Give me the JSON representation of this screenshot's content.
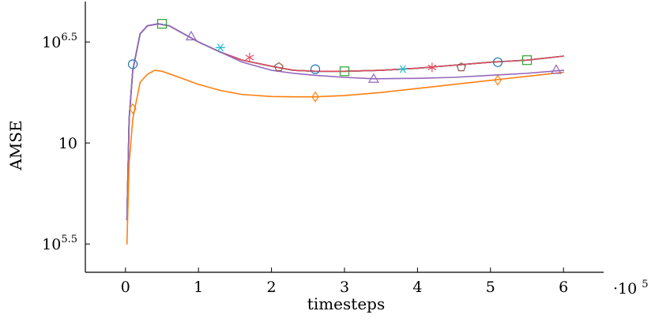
{
  "chart_data": {
    "type": "line",
    "xlabel": "timesteps",
    "ylabel": "AMSE",
    "x_scale_note": "·10^5",
    "x_scale_base": "·10",
    "x_scale_exp": "5",
    "xlim": [
      -0.55,
      6.55
    ],
    "ylim_log10": [
      5.36,
      6.7
    ],
    "y_scale": "log",
    "grid": false,
    "legend": "none",
    "x_ticks": [
      0,
      1,
      2,
      3,
      4,
      5,
      6
    ],
    "x_tick_labels": [
      "0",
      "1",
      "2",
      "3",
      "4",
      "5",
      "6"
    ],
    "y_ticks_log10": [
      5.5,
      6,
      6.5
    ],
    "y_tick_labels": [
      {
        "base": "10",
        "exp": "5.5"
      },
      {
        "base": "10",
        "exp": ""
      },
      {
        "base": "10",
        "exp": "6.5"
      }
    ],
    "series": [
      {
        "color": "#8c564b",
        "marker": "pentagon",
        "x": [
          0.02,
          0.05,
          0.1,
          0.2,
          0.3,
          0.45,
          0.6,
          0.8,
          1.0,
          1.3,
          1.6,
          2.0,
          2.3,
          2.6,
          3.0,
          3.5,
          4.0,
          4.5,
          5.0,
          5.5,
          6.0
        ],
        "log10_y": [
          5.62,
          6.12,
          6.36,
          6.54,
          6.58,
          6.59,
          6.58,
          6.54,
          6.5,
          6.45,
          6.41,
          6.38,
          6.36,
          6.355,
          6.355,
          6.36,
          6.37,
          6.385,
          6.4,
          6.41,
          6.43
        ],
        "marker_x": [
          2.1,
          4.6
        ],
        "marker_log10_y": [
          6.376,
          6.375
        ]
      },
      {
        "color": "#1f77b4",
        "marker": "circle",
        "x": [
          0.02,
          0.05,
          0.1,
          0.2,
          0.3,
          0.45,
          0.6,
          0.8,
          1.0,
          1.3,
          1.6,
          2.0,
          2.3,
          2.6,
          3.0,
          3.5,
          4.0,
          4.5,
          5.0,
          5.5,
          6.0
        ],
        "log10_y": [
          5.62,
          6.12,
          6.36,
          6.54,
          6.58,
          6.59,
          6.58,
          6.54,
          6.5,
          6.45,
          6.41,
          6.38,
          6.36,
          6.355,
          6.355,
          6.36,
          6.37,
          6.385,
          6.4,
          6.41,
          6.43
        ],
        "marker_x": [
          0.1,
          2.6,
          5.1
        ],
        "marker_log10_y": [
          6.39,
          6.365,
          6.4
        ]
      },
      {
        "color": "#2ca02c",
        "marker": "square",
        "x": [
          0.02,
          0.05,
          0.1,
          0.2,
          0.3,
          0.45,
          0.6,
          0.8,
          1.0,
          1.3,
          1.6,
          2.0,
          2.3,
          2.6,
          3.0,
          3.5,
          4.0,
          4.5,
          5.0,
          5.5,
          6.0
        ],
        "log10_y": [
          5.62,
          6.12,
          6.36,
          6.54,
          6.58,
          6.59,
          6.58,
          6.54,
          6.5,
          6.45,
          6.41,
          6.38,
          6.36,
          6.355,
          6.355,
          6.36,
          6.37,
          6.385,
          6.4,
          6.41,
          6.43
        ],
        "marker_x": [
          0.5,
          3.0,
          5.5
        ],
        "marker_log10_y": [
          6.59,
          6.355,
          6.41
        ]
      },
      {
        "color": "#17becf",
        "marker": "star",
        "x": [
          0.02,
          0.05,
          0.1,
          0.2,
          0.3,
          0.45,
          0.6,
          0.8,
          1.0,
          1.3,
          1.6,
          2.0,
          2.3,
          2.6,
          3.0,
          3.5,
          4.0,
          4.5,
          5.0,
          5.5,
          6.0
        ],
        "log10_y": [
          5.62,
          6.12,
          6.36,
          6.54,
          6.58,
          6.59,
          6.58,
          6.54,
          6.5,
          6.45,
          6.41,
          6.38,
          6.36,
          6.355,
          6.355,
          6.36,
          6.37,
          6.385,
          6.4,
          6.41,
          6.43
        ],
        "marker_x": [
          1.3,
          3.8
        ],
        "marker_log10_y": [
          6.472,
          6.366
        ]
      },
      {
        "color": "#e8475d",
        "marker": "asterisk",
        "x": [
          0.02,
          0.05,
          0.1,
          0.2,
          0.3,
          0.45,
          0.6,
          0.8,
          1.0,
          1.3,
          1.6,
          2.0,
          2.3,
          2.6,
          3.0,
          3.5,
          4.0,
          4.5,
          5.0,
          5.5,
          6.0
        ],
        "log10_y": [
          5.62,
          6.12,
          6.36,
          6.54,
          6.58,
          6.59,
          6.58,
          6.54,
          6.5,
          6.45,
          6.41,
          6.38,
          6.36,
          6.355,
          6.355,
          6.36,
          6.37,
          6.385,
          6.4,
          6.41,
          6.43
        ],
        "marker_x": [
          1.7,
          4.2
        ],
        "marker_log10_y": [
          6.423,
          6.374
        ]
      },
      {
        "color": "#9467bd",
        "marker": "triangle",
        "x": [
          0.02,
          0.05,
          0.1,
          0.2,
          0.3,
          0.45,
          0.6,
          0.8,
          1.0,
          1.3,
          1.6,
          2.0,
          2.3,
          2.6,
          3.0,
          3.4,
          4.0,
          4.5,
          5.0,
          5.5,
          6.0
        ],
        "log10_y": [
          5.62,
          6.12,
          6.36,
          6.54,
          6.58,
          6.59,
          6.58,
          6.54,
          6.5,
          6.45,
          6.4,
          6.36,
          6.345,
          6.335,
          6.325,
          6.318,
          6.32,
          6.325,
          6.335,
          6.345,
          6.36
        ],
        "marker_x": [
          0.9,
          3.4,
          5.9
        ],
        "marker_log10_y": [
          6.528,
          6.318,
          6.362
        ]
      },
      {
        "color": "#ff7f0e",
        "marker": "diamond",
        "x": [
          0.02,
          0.05,
          0.1,
          0.2,
          0.3,
          0.4,
          0.5,
          0.7,
          1.0,
          1.3,
          1.6,
          2.0,
          2.3,
          2.6,
          3.0,
          3.5,
          4.0,
          4.5,
          5.0,
          5.5,
          6.0
        ],
        "log10_y": [
          5.5,
          5.9,
          6.12,
          6.3,
          6.34,
          6.36,
          6.355,
          6.33,
          6.29,
          6.26,
          6.24,
          6.23,
          6.2285,
          6.2285,
          6.235,
          6.25,
          6.27,
          6.29,
          6.31,
          6.33,
          6.35
        ],
        "marker_x": [
          0.1,
          2.6,
          5.1
        ],
        "marker_log10_y": [
          6.17,
          6.2285,
          6.311
        ]
      }
    ]
  }
}
